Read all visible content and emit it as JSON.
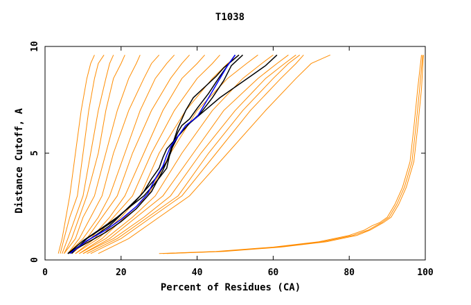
{
  "chart_data": {
    "type": "line",
    "title": "T1038",
    "xlabel": "Percent of Residues (CA)",
    "ylabel": "Distance Cutoff, A",
    "xlim": [
      0,
      100
    ],
    "ylim": [
      0,
      10
    ],
    "xticks": [
      0,
      20,
      40,
      60,
      80,
      100
    ],
    "yticks": [
      0,
      5,
      10
    ],
    "grid": false,
    "colors": {
      "bundle": "#ff8c00",
      "highlight_black": "#000000",
      "highlight_blue": "#0000ff",
      "frame": "#000000"
    },
    "series": [
      {
        "color": "#ff8c00",
        "x": [
          3.5,
          4.5,
          5.5,
          6.5,
          8,
          9.5,
          11,
          12,
          13
        ],
        "y": [
          0.3,
          1,
          2,
          3,
          5,
          7,
          8.5,
          9.2,
          9.6
        ]
      },
      {
        "color": "#ff8c00",
        "x": [
          4,
          5,
          6.5,
          8.5,
          10,
          11.5,
          13,
          14,
          15.5
        ],
        "y": [
          0.3,
          1,
          2,
          3,
          5,
          7,
          8.5,
          9.2,
          9.6
        ]
      },
      {
        "color": "#ff8c00",
        "x": [
          4.5,
          6,
          8,
          10,
          12,
          14,
          16,
          17,
          18
        ],
        "y": [
          0.3,
          1,
          2,
          3,
          5,
          7,
          8.5,
          9.2,
          9.6
        ]
      },
      {
        "color": "#ff8c00",
        "x": [
          5,
          7,
          9,
          11,
          14,
          16,
          18,
          20,
          21
        ],
        "y": [
          0.3,
          1,
          2,
          3,
          5,
          7,
          8.5,
          9.2,
          9.6
        ]
      },
      {
        "color": "#ff8c00",
        "x": [
          5,
          8,
          10,
          13,
          16,
          19,
          22,
          24,
          25
        ],
        "y": [
          0.3,
          1,
          2,
          3,
          5,
          7,
          8.5,
          9.2,
          9.6
        ]
      },
      {
        "color": "#ff8c00",
        "x": [
          6,
          9,
          12,
          15,
          18,
          22,
          26,
          28,
          30
        ],
        "y": [
          0.3,
          1,
          2,
          3,
          5,
          7,
          8.5,
          9.2,
          9.6
        ]
      },
      {
        "color": "#ff8c00",
        "x": [
          6,
          10,
          14,
          17,
          21,
          25,
          29,
          32,
          34
        ],
        "y": [
          0.3,
          1,
          2,
          3,
          5,
          7,
          8.5,
          9.2,
          9.6
        ]
      },
      {
        "color": "#ff8c00",
        "x": [
          7,
          11,
          15,
          19,
          23,
          28,
          33,
          36,
          38
        ],
        "y": [
          0.3,
          1,
          2,
          3,
          5,
          7,
          8.5,
          9.2,
          9.6
        ]
      },
      {
        "color": "#ff8c00",
        "x": [
          7,
          12,
          17,
          21,
          26,
          31,
          36,
          40,
          42
        ],
        "y": [
          0.3,
          1,
          2,
          3,
          5,
          7,
          8.5,
          9.2,
          9.6
        ]
      },
      {
        "color": "#ff8c00",
        "x": [
          8,
          13,
          18,
          23,
          28,
          34,
          40,
          44,
          46
        ],
        "y": [
          0.3,
          1,
          2,
          3,
          5,
          7,
          8.5,
          9.2,
          9.6
        ]
      },
      {
        "color": "#ff8c00",
        "x": [
          8,
          14,
          20,
          25,
          30,
          37,
          44,
          48,
          51
        ],
        "y": [
          0.3,
          1,
          2,
          3,
          5,
          7,
          8.5,
          9.2,
          9.6
        ]
      },
      {
        "color": "#ff8c00",
        "x": [
          9,
          15,
          21,
          27,
          33,
          40,
          48,
          53,
          56
        ],
        "y": [
          0.3,
          1,
          2,
          3,
          5,
          7,
          8.5,
          9.2,
          9.6
        ]
      },
      {
        "color": "#ff8c00",
        "x": [
          9,
          16,
          23,
          29,
          36,
          44,
          52,
          57,
          60
        ],
        "y": [
          0.3,
          1,
          2,
          3,
          5,
          7,
          8.5,
          9.2,
          9.6
        ]
      },
      {
        "color": "#ff8c00",
        "x": [
          10,
          17,
          24,
          31,
          39,
          47,
          56,
          61,
          64
        ],
        "y": [
          0.3,
          1,
          2,
          3,
          5,
          7,
          8.5,
          9.2,
          9.6
        ]
      },
      {
        "color": "#ff8c00",
        "x": [
          10,
          18,
          26,
          33,
          41,
          50,
          58,
          63,
          66
        ],
        "y": [
          0.3,
          1,
          2,
          3,
          5,
          7,
          8.5,
          9.2,
          9.6
        ]
      },
      {
        "color": "#ff8c00",
        "x": [
          11,
          19,
          27,
          35,
          43,
          52,
          60,
          64,
          67
        ],
        "y": [
          0.3,
          1,
          2,
          3,
          5,
          7,
          8.5,
          9.2,
          9.6
        ]
      },
      {
        "color": "#ff8c00",
        "x": [
          12,
          20,
          28,
          36,
          45,
          54,
          62,
          66,
          68
        ],
        "y": [
          0.3,
          1,
          2,
          3,
          5,
          7,
          8.5,
          9.2,
          9.6
        ]
      },
      {
        "color": "#ff8c00",
        "x": [
          14,
          22,
          30,
          38,
          48,
          58,
          66,
          70,
          75
        ],
        "y": [
          0.3,
          1,
          2,
          3,
          5,
          7,
          8.5,
          9.2,
          9.6
        ]
      },
      {
        "color": "#ff8c00",
        "x": [
          30,
          45,
          60,
          72,
          80,
          84,
          86,
          88,
          90,
          92,
          94,
          96,
          97,
          98,
          99
        ],
        "y": [
          0.3,
          0.4,
          0.6,
          0.85,
          1.15,
          1.4,
          1.6,
          1.75,
          2.0,
          2.6,
          3.4,
          4.6,
          6.2,
          8.0,
          9.6
        ]
      },
      {
        "color": "#ff8c00",
        "x": [
          31,
          46,
          61,
          73,
          81,
          85,
          87,
          88.5,
          90.5,
          92.5,
          94.5,
          96.5,
          97.5,
          98.5,
          99.3
        ],
        "y": [
          0.3,
          0.4,
          0.6,
          0.85,
          1.15,
          1.4,
          1.6,
          1.75,
          2.0,
          2.6,
          3.4,
          4.6,
          6.2,
          8.0,
          9.6
        ]
      },
      {
        "color": "#ff8c00",
        "x": [
          32,
          47,
          62,
          74,
          82,
          85.5,
          87.5,
          89,
          91,
          93,
          95,
          97,
          98,
          99,
          99.5
        ],
        "y": [
          0.3,
          0.4,
          0.6,
          0.85,
          1.15,
          1.4,
          1.6,
          1.75,
          2.0,
          2.6,
          3.4,
          4.6,
          6.2,
          8.0,
          9.6
        ]
      },
      {
        "color": "#000000",
        "x": [
          6,
          11,
          16,
          20,
          24,
          28,
          31,
          33,
          34,
          35,
          36,
          38,
          40,
          43,
          46,
          48,
          50
        ],
        "y": [
          0.3,
          0.8,
          1.3,
          1.8,
          2.4,
          3.2,
          4.2,
          5,
          5.6,
          6.0,
          6.3,
          6.6,
          7.1,
          7.8,
          8.6,
          9.1,
          9.6
        ]
      },
      {
        "color": "#000000",
        "x": [
          6,
          12,
          17,
          21,
          25,
          29,
          32,
          33.5,
          35,
          37,
          39,
          42,
          45,
          47,
          49,
          51
        ],
        "y": [
          0.3,
          1.0,
          1.6,
          2.3,
          3.0,
          3.8,
          4.6,
          5.4,
          6.2,
          7.0,
          7.6,
          8.1,
          8.6,
          9.0,
          9.3,
          9.6
        ]
      },
      {
        "color": "#000000",
        "x": [
          7,
          11,
          17,
          21,
          26,
          29,
          32,
          33,
          35,
          38,
          42,
          46,
          50,
          54,
          58,
          61
        ],
        "y": [
          0.3,
          1.0,
          1.7,
          2.3,
          3.0,
          3.6,
          4.3,
          5.1,
          5.8,
          6.4,
          7.0,
          7.6,
          8.1,
          8.6,
          9.1,
          9.6
        ]
      },
      {
        "color": "#000000",
        "x": [
          6,
          10,
          15,
          19,
          23,
          26,
          28,
          30,
          31,
          32,
          34,
          36,
          38,
          41,
          44,
          47,
          49,
          52
        ],
        "y": [
          0.3,
          0.9,
          1.5,
          2.0,
          2.6,
          3.2,
          3.8,
          4.3,
          4.8,
          5.2,
          5.6,
          6.0,
          6.4,
          6.9,
          7.6,
          8.4,
          9.1,
          9.6
        ]
      },
      {
        "color": "#0000ff",
        "x": [
          6.5,
          11,
          16,
          20,
          24,
          27,
          29,
          31,
          32,
          33,
          35,
          37,
          40,
          42,
          44,
          46,
          48,
          50
        ],
        "y": [
          0.3,
          0.9,
          1.4,
          1.9,
          2.5,
          3.1,
          3.8,
          4.4,
          4.9,
          5.3,
          5.8,
          6.3,
          6.7,
          7.3,
          7.9,
          8.5,
          9.1,
          9.6
        ]
      }
    ]
  }
}
